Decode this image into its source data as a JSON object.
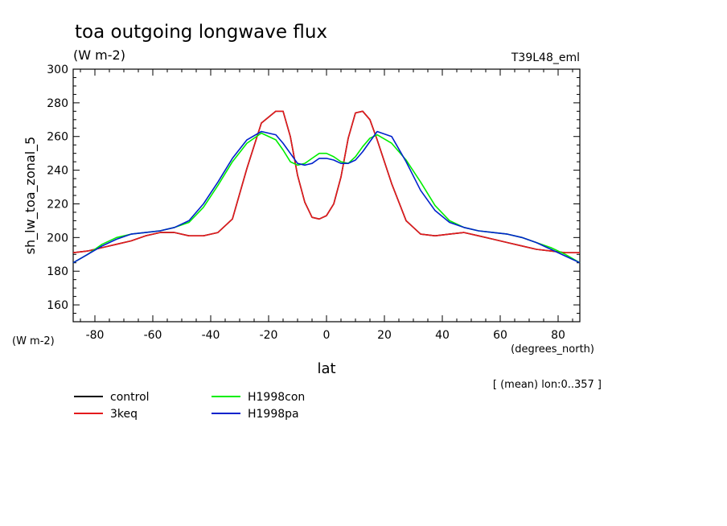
{
  "chart_data": {
    "type": "line",
    "title": "toa outgoing longwave flux",
    "subtitle": "(W m-2)",
    "model_label": "T39L48_eml",
    "ylabel": "sh_lw_toa_zonal_5",
    "y_units": "(W m-2)",
    "xlabel": "lat",
    "x_units": "(degrees_north)",
    "note": "[ (mean) lon:0..357 ]",
    "xlim": [
      -87.5,
      87.5
    ],
    "ylim": [
      150,
      300
    ],
    "x_ticks": [
      -80,
      -60,
      -40,
      -20,
      0,
      20,
      40,
      60,
      80
    ],
    "x_tick_labels": [
      "-80",
      "-60",
      "-40",
      "-20",
      "0",
      "20",
      "40",
      "60",
      "80"
    ],
    "y_ticks": [
      160,
      180,
      200,
      220,
      240,
      260,
      280,
      300
    ],
    "y_tick_labels": [
      "160",
      "180",
      "200",
      "220",
      "240",
      "260",
      "280",
      "300"
    ],
    "x": [
      -87.5,
      -82.5,
      -77.5,
      -72.5,
      -67.5,
      -62.5,
      -57.5,
      -52.5,
      -47.5,
      -42.5,
      -37.5,
      -32.5,
      -27.5,
      -22.5,
      -17.5,
      -15,
      -12.5,
      -10,
      -7.5,
      -5,
      -2.5,
      0,
      2.5,
      5,
      7.5,
      10,
      12.5,
      15,
      17.5,
      22.5,
      27.5,
      32.5,
      37.5,
      42.5,
      47.5,
      52.5,
      57.5,
      62.5,
      67.5,
      72.5,
      77.5,
      82.5,
      87.5
    ],
    "series": [
      {
        "name": "control",
        "color": "#000000",
        "values": [
          191,
          192,
          194,
          196,
          198,
          201,
          203,
          203,
          201,
          201,
          203,
          211,
          241,
          268,
          275,
          275,
          260,
          237,
          221,
          212,
          211,
          213,
          220,
          236,
          259,
          274,
          275,
          270,
          258,
          232,
          210,
          202,
          201,
          202,
          203,
          201,
          199,
          197,
          195,
          193,
          192,
          191,
          191
        ]
      },
      {
        "name": "3keq",
        "color": "#e41a1c",
        "values": [
          191,
          192,
          194,
          196,
          198,
          201,
          203,
          203,
          201,
          201,
          203,
          211,
          241,
          268,
          275,
          275,
          260,
          237,
          221,
          212,
          211,
          213,
          220,
          236,
          259,
          274,
          275,
          270,
          258,
          232,
          210,
          202,
          201,
          202,
          203,
          201,
          199,
          197,
          195,
          193,
          192,
          191,
          191
        ]
      },
      {
        "name": "H1998con",
        "color": "#00ee00",
        "values": [
          185,
          190,
          196,
          200,
          202,
          203,
          204,
          206,
          209,
          218,
          231,
          245,
          256,
          262,
          258,
          252,
          245,
          243,
          244,
          247,
          250,
          250,
          248,
          245,
          244,
          248,
          254,
          259,
          261,
          256,
          246,
          233,
          219,
          210,
          206,
          204,
          203,
          202,
          200,
          197,
          194,
          190,
          185
        ]
      },
      {
        "name": "H1998pa",
        "color": "#0022cc",
        "values": [
          185,
          190,
          195,
          199,
          202,
          203,
          204,
          206,
          210,
          220,
          233,
          247,
          258,
          263,
          261,
          256,
          250,
          244,
          243,
          244,
          247,
          247,
          246,
          244,
          244,
          246,
          251,
          257,
          263,
          260,
          245,
          228,
          216,
          209,
          206,
          204,
          203,
          202,
          200,
          197,
          193,
          189,
          185
        ]
      }
    ]
  }
}
